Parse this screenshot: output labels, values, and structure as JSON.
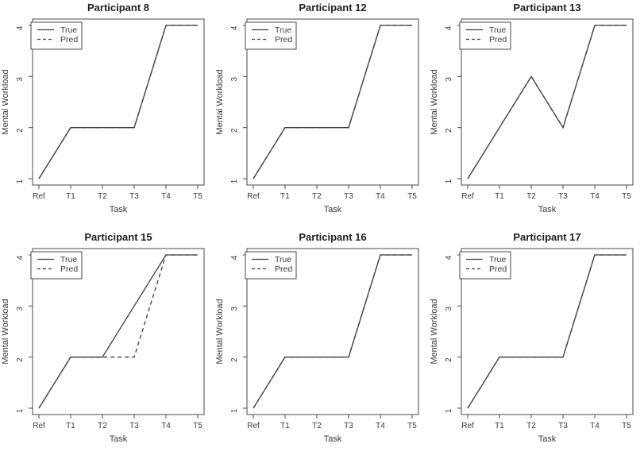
{
  "figure": {
    "style": {
      "background": "#ffffff",
      "line_color": "#3d3d3d",
      "frame_color": "#4a4a4a",
      "text_color": "#3a3a3a"
    }
  },
  "chart_data": [
    {
      "type": "line",
      "title": "Participant 8",
      "xlabel": "Task",
      "ylabel": "Mental Workload",
      "categories": [
        "Ref",
        "T1",
        "T2",
        "T3",
        "T4",
        "T5"
      ],
      "yticks": [
        1,
        2,
        3,
        4
      ],
      "ylim": [
        1,
        4
      ],
      "grid": false,
      "legend": {
        "position": "topleft",
        "entries": [
          "True",
          "Pred"
        ]
      },
      "series": [
        {
          "name": "True",
          "style": "solid",
          "values": [
            1,
            2,
            2,
            2,
            4,
            4
          ]
        },
        {
          "name": "Pred",
          "style": "dashed",
          "values": [
            1,
            2,
            2,
            2,
            4,
            4
          ]
        }
      ]
    },
    {
      "type": "line",
      "title": "Participant 12",
      "xlabel": "Task",
      "ylabel": "Mental Workload",
      "categories": [
        "Ref",
        "T1",
        "T2",
        "T3",
        "T4",
        "T5"
      ],
      "yticks": [
        1,
        2,
        3,
        4
      ],
      "ylim": [
        1,
        4
      ],
      "grid": false,
      "legend": {
        "position": "topleft",
        "entries": [
          "True",
          "Pred"
        ]
      },
      "series": [
        {
          "name": "True",
          "style": "solid",
          "values": [
            1,
            2,
            2,
            2,
            4,
            4
          ]
        },
        {
          "name": "Pred",
          "style": "dashed",
          "values": [
            1,
            2,
            2,
            2,
            4,
            4
          ]
        }
      ]
    },
    {
      "type": "line",
      "title": "Participant 13",
      "xlabel": "Task",
      "ylabel": "Mental Workload",
      "categories": [
        "Ref",
        "T1",
        "T2",
        "T3",
        "T4",
        "T5"
      ],
      "yticks": [
        1,
        2,
        3,
        4
      ],
      "ylim": [
        1,
        4
      ],
      "grid": false,
      "legend": {
        "position": "topleft",
        "entries": [
          "True",
          "Pred"
        ]
      },
      "series": [
        {
          "name": "True",
          "style": "solid",
          "values": [
            1,
            2,
            3,
            2,
            4,
            4
          ]
        },
        {
          "name": "Pred",
          "style": "dashed",
          "values": [
            1,
            2,
            3,
            2,
            4,
            4
          ]
        }
      ]
    },
    {
      "type": "line",
      "title": "Participant 15",
      "xlabel": "Task",
      "ylabel": "Mental Workload",
      "categories": [
        "Ref",
        "T1",
        "T2",
        "T3",
        "T4",
        "T5"
      ],
      "yticks": [
        1,
        2,
        3,
        4
      ],
      "ylim": [
        1,
        4
      ],
      "grid": false,
      "legend": {
        "position": "topleft",
        "entries": [
          "True",
          "Pred"
        ]
      },
      "series": [
        {
          "name": "True",
          "style": "solid",
          "values": [
            1,
            2,
            2,
            3,
            4,
            4
          ]
        },
        {
          "name": "Pred",
          "style": "dashed",
          "values": [
            1,
            2,
            2,
            2,
            4,
            4
          ]
        }
      ]
    },
    {
      "type": "line",
      "title": "Participant 16",
      "xlabel": "Task",
      "ylabel": "Mental Workload",
      "categories": [
        "Ref",
        "T1",
        "T2",
        "T3",
        "T4",
        "T5"
      ],
      "yticks": [
        1,
        2,
        3,
        4
      ],
      "ylim": [
        1,
        4
      ],
      "grid": false,
      "legend": {
        "position": "topleft",
        "entries": [
          "True",
          "Pred"
        ]
      },
      "series": [
        {
          "name": "True",
          "style": "solid",
          "values": [
            1,
            2,
            2,
            2,
            4,
            4
          ]
        },
        {
          "name": "Pred",
          "style": "dashed",
          "values": [
            1,
            2,
            2,
            2,
            4,
            4
          ]
        }
      ]
    },
    {
      "type": "line",
      "title": "Participant 17",
      "xlabel": "Task",
      "ylabel": "Mental Workload",
      "categories": [
        "Ref",
        "T1",
        "T2",
        "T3",
        "T4",
        "T5"
      ],
      "yticks": [
        1,
        2,
        3,
        4
      ],
      "ylim": [
        1,
        4
      ],
      "grid": false,
      "legend": {
        "position": "topleft",
        "entries": [
          "True",
          "Pred"
        ]
      },
      "series": [
        {
          "name": "True",
          "style": "solid",
          "values": [
            1,
            2,
            2,
            2,
            4,
            4
          ]
        },
        {
          "name": "Pred",
          "style": "dashed",
          "values": [
            1,
            2,
            2,
            2,
            4,
            4
          ]
        }
      ]
    }
  ]
}
